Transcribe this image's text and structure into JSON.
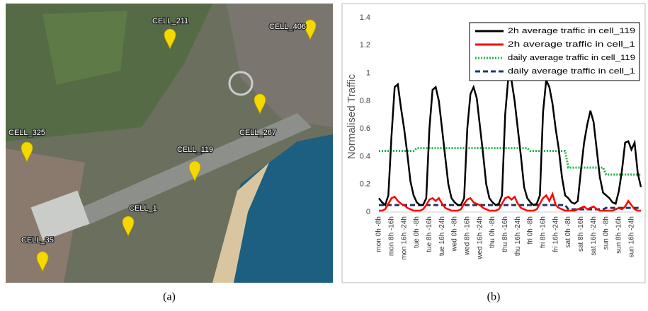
{
  "panel_a": {
    "caption": "(a)",
    "cells": [
      "CELL_211",
      "CELL_406",
      "CELL_325",
      "CELL_267",
      "CELL_119",
      "CELL_1",
      "CELL_35"
    ]
  },
  "chart_data": {
    "type": "line",
    "caption": "(b)",
    "y_label": "Normalised Traffic",
    "categories": [
      "mon 0h -8h",
      null,
      null,
      null,
      "mon 8h -16h",
      null,
      null,
      null,
      "mon 16h -24h",
      null,
      null,
      null,
      "tue 0h -8h",
      null,
      null,
      null,
      "tue 8h -16h",
      null,
      null,
      null,
      "tue 16h -24h",
      null,
      null,
      null,
      "wed 0h -8h",
      null,
      null,
      null,
      "wed 8h -16h",
      null,
      null,
      null,
      "wed 16h -24h",
      null,
      null,
      null,
      "thu 0h -8h",
      null,
      null,
      null,
      "thu 8h -16h",
      null,
      null,
      null,
      "thu 16h -24h",
      null,
      null,
      null,
      "fri 0h -8h",
      null,
      null,
      null,
      "fri 8h -16h",
      null,
      null,
      null,
      "fri 16h -24h",
      null,
      null,
      null,
      "sat 0h -8h",
      null,
      null,
      null,
      "sat 8h -16h",
      null,
      null,
      null,
      "sat 16h -24h",
      null,
      null,
      null,
      "sun 0h -8h",
      null,
      null,
      null,
      "sun 8h -16h",
      null,
      null,
      null,
      "sun 16h -24h",
      null,
      null,
      null
    ],
    "ylim": [
      0,
      1.4
    ],
    "yticks": [
      0,
      0.2,
      0.4,
      0.6,
      0.8,
      1,
      1.2,
      1.4
    ],
    "legend": "upper right",
    "series": [
      {
        "name": "2h average traffic in cell_119",
        "color": "#000000",
        "style": "solid",
        "values": [
          0.1,
          0.07,
          0.05,
          0.12,
          0.55,
          0.9,
          0.92,
          0.75,
          0.6,
          0.42,
          0.22,
          0.12,
          0.07,
          0.05,
          0.05,
          0.1,
          0.6,
          0.88,
          0.9,
          0.8,
          0.6,
          0.4,
          0.2,
          0.1,
          0.07,
          0.05,
          0.05,
          0.1,
          0.6,
          0.85,
          0.9,
          0.82,
          0.62,
          0.42,
          0.2,
          0.1,
          0.07,
          0.05,
          0.06,
          0.12,
          0.7,
          0.97,
          0.95,
          0.8,
          0.6,
          0.4,
          0.18,
          0.1,
          0.07,
          0.05,
          0.06,
          0.12,
          0.72,
          0.95,
          0.9,
          0.78,
          0.6,
          0.45,
          0.25,
          0.12,
          0.1,
          0.07,
          0.06,
          0.08,
          0.3,
          0.5,
          0.63,
          0.73,
          0.65,
          0.45,
          0.25,
          0.14,
          0.12,
          0.1,
          0.07,
          0.06,
          0.15,
          0.3,
          0.5,
          0.51,
          0.45,
          0.5,
          0.28,
          0.18
        ]
      },
      {
        "name": "2h average traffic in cell_1",
        "color": "#ff0000",
        "style": "solid",
        "values": [
          0.01,
          0.01,
          0.02,
          0.06,
          0.1,
          0.11,
          0.08,
          0.06,
          0.05,
          0.03,
          0.02,
          0.01,
          0.01,
          0.01,
          0.02,
          0.05,
          0.09,
          0.1,
          0.08,
          0.1,
          0.06,
          0.03,
          0.02,
          0.01,
          0.01,
          0.01,
          0.02,
          0.06,
          0.09,
          0.1,
          0.07,
          0.06,
          0.05,
          0.03,
          0.02,
          0.01,
          0.01,
          0.01,
          0.02,
          0.06,
          0.1,
          0.11,
          0.09,
          0.11,
          0.06,
          0.03,
          0.02,
          0.01,
          0.01,
          0.01,
          0.02,
          0.06,
          0.1,
          0.12,
          0.08,
          0.13,
          0.05,
          0.03,
          0.02,
          0.01,
          0.01,
          0.01,
          0.01,
          0.02,
          0.03,
          0.04,
          0.02,
          0.03,
          0.04,
          0.02,
          0.01,
          0.01,
          0.01,
          0.01,
          0.01,
          0.02,
          0.03,
          0.02,
          0.04,
          0.08,
          0.05,
          0.02,
          0.01,
          0.01
        ]
      },
      {
        "name": "daily average traffic in cell_119",
        "color": "#22b14c",
        "style": "dotted",
        "values": [
          0.44,
          0.44,
          0.44,
          0.44,
          0.44,
          0.44,
          0.44,
          0.44,
          0.44,
          0.44,
          0.44,
          0.44,
          0.46,
          0.46,
          0.46,
          0.46,
          0.46,
          0.46,
          0.46,
          0.46,
          0.46,
          0.46,
          0.46,
          0.46,
          0.46,
          0.46,
          0.46,
          0.46,
          0.46,
          0.46,
          0.46,
          0.46,
          0.46,
          0.46,
          0.46,
          0.46,
          0.46,
          0.46,
          0.46,
          0.46,
          0.46,
          0.46,
          0.46,
          0.46,
          0.46,
          0.46,
          0.46,
          0.46,
          0.44,
          0.44,
          0.44,
          0.44,
          0.44,
          0.44,
          0.44,
          0.44,
          0.44,
          0.44,
          0.44,
          0.44,
          0.32,
          0.32,
          0.32,
          0.32,
          0.32,
          0.32,
          0.32,
          0.32,
          0.32,
          0.32,
          0.32,
          0.32,
          0.27,
          0.27,
          0.27,
          0.27,
          0.27,
          0.27,
          0.27,
          0.27,
          0.27,
          0.27,
          0.27,
          0.27
        ]
      },
      {
        "name": "daily average traffic in cell_1",
        "color": "#1f3864",
        "style": "dashed",
        "values": [
          0.05,
          0.05,
          0.05,
          0.05,
          0.05,
          0.05,
          0.05,
          0.05,
          0.05,
          0.05,
          0.05,
          0.05,
          0.05,
          0.05,
          0.05,
          0.05,
          0.05,
          0.05,
          0.05,
          0.05,
          0.05,
          0.05,
          0.05,
          0.05,
          0.05,
          0.05,
          0.05,
          0.05,
          0.05,
          0.05,
          0.05,
          0.05,
          0.05,
          0.05,
          0.05,
          0.05,
          0.05,
          0.05,
          0.05,
          0.05,
          0.05,
          0.05,
          0.05,
          0.05,
          0.05,
          0.05,
          0.05,
          0.05,
          0.05,
          0.05,
          0.05,
          0.05,
          0.05,
          0.05,
          0.05,
          0.05,
          0.05,
          0.05,
          0.05,
          0.05,
          0.02,
          0.02,
          0.02,
          0.02,
          0.02,
          0.02,
          0.02,
          0.02,
          0.02,
          0.02,
          0.02,
          0.02,
          0.03,
          0.03,
          0.03,
          0.03,
          0.03,
          0.03,
          0.03,
          0.03,
          0.03,
          0.03,
          0.03,
          0.03
        ]
      }
    ]
  }
}
